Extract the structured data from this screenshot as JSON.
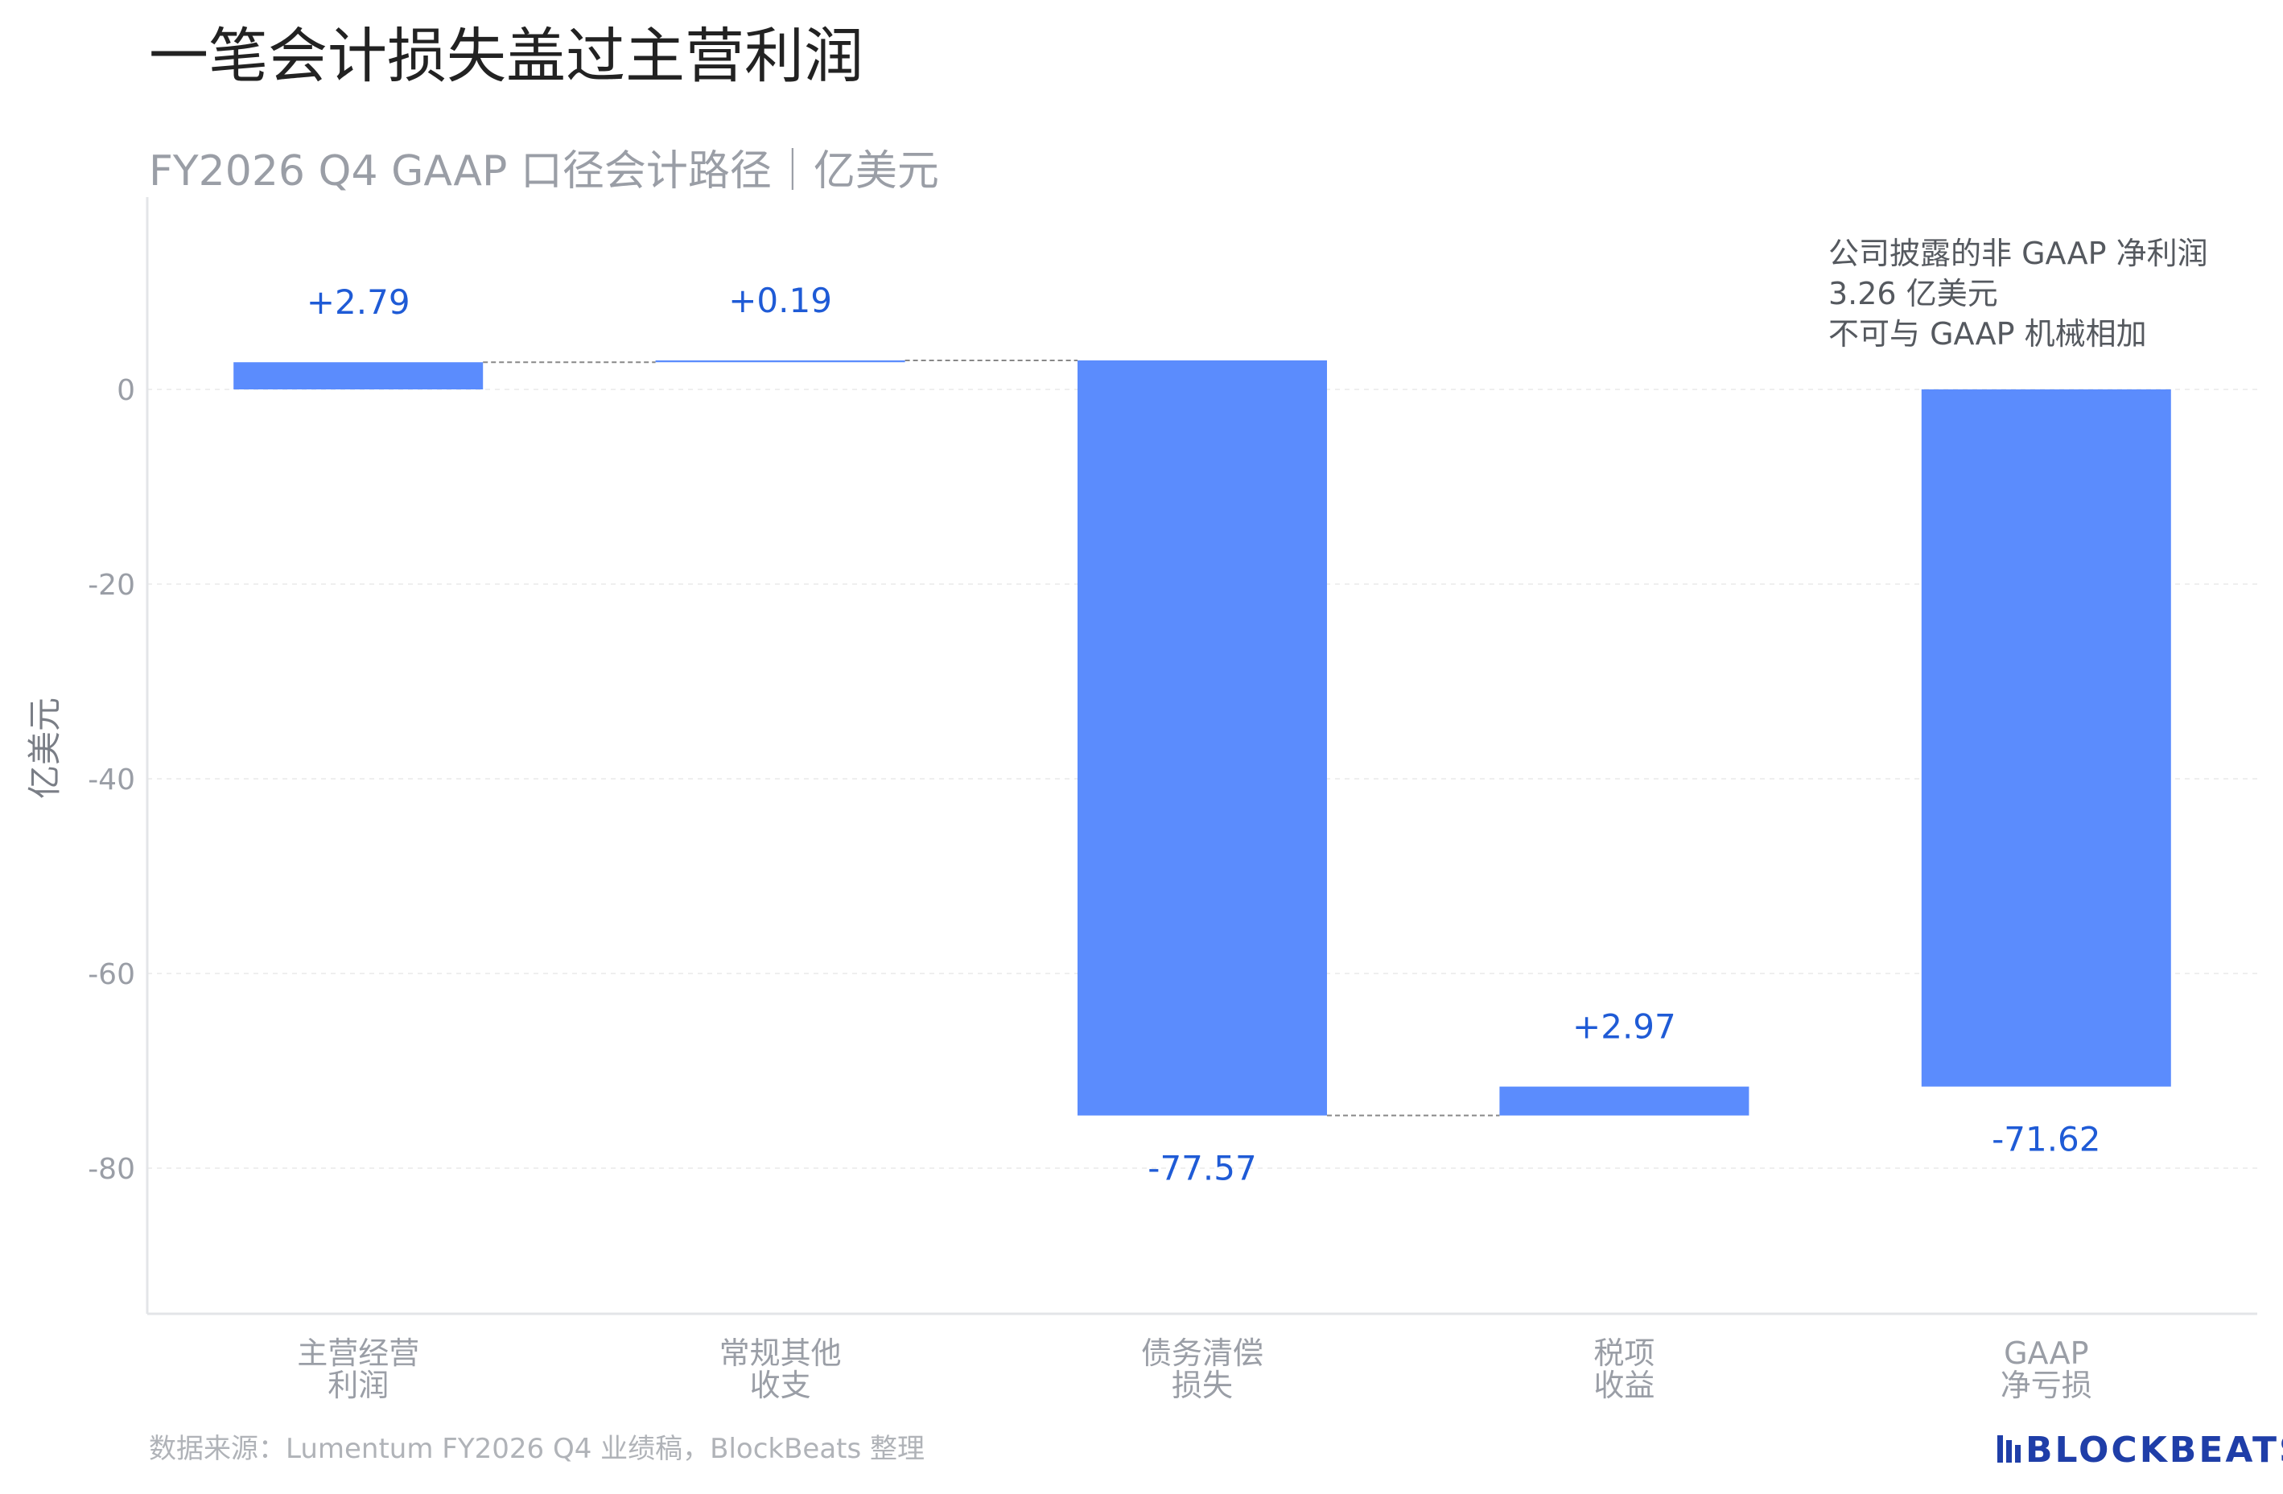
{
  "chart_data": {
    "type": "bar",
    "title": "一笔会计损失盖过主营利润",
    "subtitle": "FY2026 Q4 GAAP 口径会计路径｜亿美元",
    "ylabel": "亿美元",
    "ylim": [
      -95,
      20
    ],
    "yticks": [
      0,
      -20,
      -40,
      -60,
      -80
    ],
    "categories": [
      [
        "主营经营",
        "利润"
      ],
      [
        "常规其他",
        "收支"
      ],
      [
        "债务清偿",
        "损失"
      ],
      [
        "税项",
        "收益"
      ],
      [
        "GAAP",
        "净亏损"
      ]
    ],
    "steps": [
      {
        "start": 0,
        "end": 2.79,
        "label": "+2.79"
      },
      {
        "start": 2.79,
        "end": 2.98,
        "label": "+0.19"
      },
      {
        "start": 2.98,
        "end": -74.59,
        "label": "-77.57"
      },
      {
        "start": -74.59,
        "end": -71.62,
        "label": "+2.97"
      },
      {
        "start": 0,
        "end": -71.62,
        "label": "-71.62"
      }
    ],
    "connectors": [
      [
        0,
        1
      ],
      [
        1,
        2
      ],
      [
        2,
        3
      ]
    ],
    "bar_color": "#5b8cfd",
    "label_color": "#1f5bd6",
    "annotation": [
      "公司披露的非 GAAP 净利润",
      "3.26 亿美元",
      "不可与 GAAP 机械相加"
    ],
    "grid": true
  },
  "footer": {
    "source": "数据来源：Lumentum FY2026 Q4 业绩稿，BlockBeats 整理",
    "logo": "BLOCKBEATS"
  }
}
